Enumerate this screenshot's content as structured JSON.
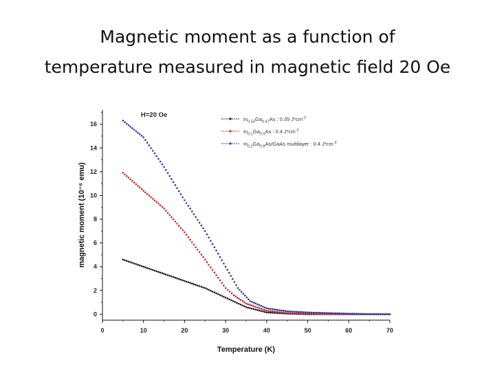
{
  "slide": {
    "title_line1": "Magnetic moment  as a function of",
    "title_line2": "temperature measured in magnetic field 20 Oe"
  },
  "chart_data": {
    "type": "scatter",
    "title": "",
    "annotation": "H=20 Oe",
    "xlabel": "Temperature (K)",
    "ylabel": "magnetic moment (10⁻⁶ emu)",
    "xlim": [
      0,
      70
    ],
    "ylim": [
      -0.5,
      17.2
    ],
    "xticks": [
      0,
      10,
      20,
      30,
      40,
      50,
      60,
      70
    ],
    "yticks": [
      0,
      2,
      4,
      6,
      8,
      10,
      12,
      14,
      16
    ],
    "grid": false,
    "legend": "top-right",
    "series": [
      {
        "name": "In0.53Ga0.47As : 0.35 J*cm⁻²",
        "legend_parts": {
          "b1": "In",
          "s1": "0.53",
          "b2": "Ga",
          "s2": "0.47",
          "rest": "As : 0.35 J*cm",
          "sup": "-2"
        },
        "color": "#1a1a1a",
        "x": [
          5,
          10,
          15,
          20,
          25,
          30,
          35,
          40,
          45,
          50,
          55,
          60,
          65,
          70
        ],
        "y": [
          4.6,
          4.0,
          3.4,
          2.8,
          2.2,
          1.4,
          0.6,
          0.15,
          0.05,
          0.0,
          0.0,
          0.0,
          0.0,
          0.0
        ]
      },
      {
        "name": "In0.1Ga0.9As : 0.4 J*cm⁻²",
        "legend_parts": {
          "b1": "In",
          "s1": "0.1",
          "b2": "Ga",
          "s2": "0.9",
          "rest": "As : 0.4 J*cm",
          "sup": "-2"
        },
        "color": "#c42a2a",
        "x": [
          5,
          10,
          15,
          20,
          25,
          30,
          32,
          35,
          40,
          45,
          50,
          55,
          60,
          65,
          70
        ],
        "y": [
          11.9,
          10.4,
          8.9,
          6.9,
          4.6,
          2.2,
          1.6,
          0.9,
          0.3,
          0.1,
          0.05,
          0.0,
          0.0,
          0.0,
          0.0
        ]
      },
      {
        "name": "In0.2Ga0.8As/GaAs multilayer : 0.4 J*cm⁻²",
        "legend_parts": {
          "b1": "In",
          "s1": "0.2",
          "b2": "Ga",
          "s2": "0.8",
          "rest": "As/GaAs multilayer : 0.4 J*cm",
          "sup": "-2"
        },
        "color": "#2b35a0",
        "x": [
          5,
          10,
          15,
          20,
          25,
          30,
          33,
          36,
          40,
          45,
          50,
          55,
          60,
          65,
          70
        ],
        "y": [
          16.3,
          14.9,
          12.4,
          9.6,
          7.0,
          4.0,
          2.2,
          1.1,
          0.5,
          0.25,
          0.15,
          0.1,
          0.05,
          0.02,
          0.0
        ]
      }
    ]
  }
}
